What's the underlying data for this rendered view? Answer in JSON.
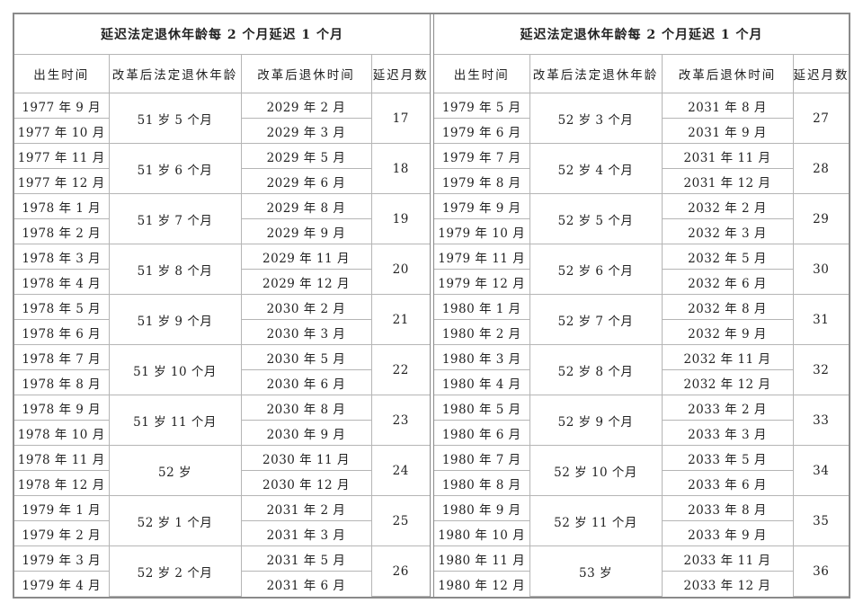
{
  "title": "延迟法定退休年龄每 2 个月延迟 1 个月",
  "headers": [
    "出生时间",
    "改革后法定退休年龄",
    "改革后退休时间",
    "延迟月数"
  ],
  "left_groups": [
    {
      "births": [
        "1977 年 9 月",
        "1977 年 10 月"
      ],
      "age": "51 岁 5 个月",
      "times": [
        "2029 年 2 月",
        "2029 年 3 月"
      ],
      "months": "17"
    },
    {
      "births": [
        "1977 年 11 月",
        "1977 年 12 月"
      ],
      "age": "51 岁 6 个月",
      "times": [
        "2029 年 5 月",
        "2029 年 6 月"
      ],
      "months": "18"
    },
    {
      "births": [
        "1978 年 1 月",
        "1978 年 2 月"
      ],
      "age": "51 岁 7 个月",
      "times": [
        "2029 年 8 月",
        "2029 年 9 月"
      ],
      "months": "19"
    },
    {
      "births": [
        "1978 年 3 月",
        "1978 年 4 月"
      ],
      "age": "51 岁 8 个月",
      "times": [
        "2029 年 11 月",
        "2029 年 12 月"
      ],
      "months": "20"
    },
    {
      "births": [
        "1978 年 5 月",
        "1978 年 6 月"
      ],
      "age": "51 岁 9 个月",
      "times": [
        "2030 年 2 月",
        "2030 年 3 月"
      ],
      "months": "21"
    },
    {
      "births": [
        "1978 年 7 月",
        "1978 年 8 月"
      ],
      "age": "51 岁 10 个月",
      "times": [
        "2030 年 5 月",
        "2030 年 6 月"
      ],
      "months": "22"
    },
    {
      "births": [
        "1978 年 9 月",
        "1978 年 10 月"
      ],
      "age": "51 岁 11 个月",
      "times": [
        "2030 年 8 月",
        "2030 年 9 月"
      ],
      "months": "23"
    },
    {
      "births": [
        "1978 年 11 月",
        "1978 年 12 月"
      ],
      "age": "52 岁",
      "times": [
        "2030 年 11 月",
        "2030 年 12 月"
      ],
      "months": "24"
    },
    {
      "births": [
        "1979 年 1 月",
        "1979 年 2 月"
      ],
      "age": "52 岁 1 个月",
      "times": [
        "2031 年 2 月",
        "2031 年 3 月"
      ],
      "months": "25"
    },
    {
      "births": [
        "1979 年 3 月",
        "1979 年 4 月"
      ],
      "age": "52 岁 2 个月",
      "times": [
        "2031 年 5 月",
        "2031 年 6 月"
      ],
      "months": "26"
    }
  ],
  "right_groups": [
    {
      "births": [
        "1979 年 5 月",
        "1979 年 6 月"
      ],
      "age": "52 岁 3 个月",
      "times": [
        "2031 年 8 月",
        "2031 年 9 月"
      ],
      "months": "27"
    },
    {
      "births": [
        "1979 年 7 月",
        "1979 年 8 月"
      ],
      "age": "52 岁 4 个月",
      "times": [
        "2031 年 11 月",
        "2031 年 12 月"
      ],
      "months": "28"
    },
    {
      "births": [
        "1979 年 9 月",
        "1979 年 10 月"
      ],
      "age": "52 岁 5 个月",
      "times": [
        "2032 年 2 月",
        "2032 年 3 月"
      ],
      "months": "29"
    },
    {
      "births": [
        "1979 年 11 月",
        "1979 年 12 月"
      ],
      "age": "52 岁 6 个月",
      "times": [
        "2032 年 5 月",
        "2032 年 6 月"
      ],
      "months": "30"
    },
    {
      "births": [
        "1980 年 1 月",
        "1980 年 2 月"
      ],
      "age": "52 岁 7 个月",
      "times": [
        "2032 年 8 月",
        "2032 年 9 月"
      ],
      "months": "31"
    },
    {
      "births": [
        "1980 年 3 月",
        "1980 年 4 月"
      ],
      "age": "52 岁 8 个月",
      "times": [
        "2032 年 11 月",
        "2032 年 12 月"
      ],
      "months": "32"
    },
    {
      "births": [
        "1980 年 5 月",
        "1980 年 6 月"
      ],
      "age": "52 岁 9 个月",
      "times": [
        "2033 年 2 月",
        "2033 年 3 月"
      ],
      "months": "33"
    },
    {
      "births": [
        "1980 年 7 月",
        "1980 年 8 月"
      ],
      "age": "52 岁 10 个月",
      "times": [
        "2033 年 5 月",
        "2033 年 6 月"
      ],
      "months": "34"
    },
    {
      "births": [
        "1980 年 9 月",
        "1980 年 10 月"
      ],
      "age": "52 岁 11 个月",
      "times": [
        "2033 年 8 月",
        "2033 年 9 月"
      ],
      "months": "35"
    },
    {
      "births": [
        "1980 年 11 月",
        "1980 年 12 月"
      ],
      "age": "53 岁",
      "times": [
        "2033 年 11 月",
        "2033 年 12 月"
      ],
      "months": "36"
    }
  ]
}
